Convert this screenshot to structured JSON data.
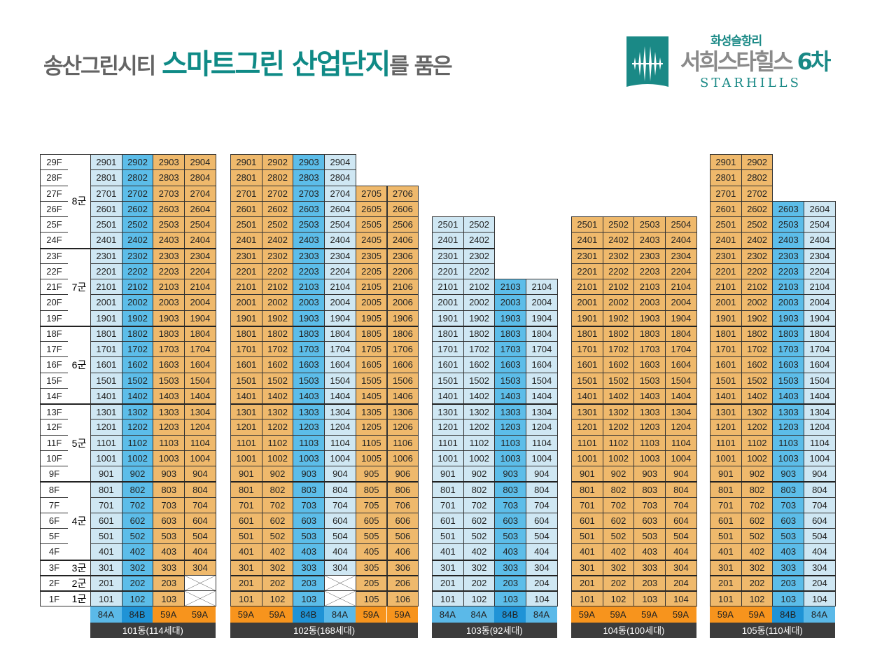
{
  "headline": {
    "prefix": "송산그린시티",
    "highlight": "스마트그린 산업단지",
    "suffix": "를 품은"
  },
  "logo": {
    "sub": "화성슬항리",
    "main": "서희스타힐스",
    "main_num": "6차",
    "english": "STARHILLS"
  },
  "colors": {
    "light_blue": "#cfe7f3",
    "mid_blue": "#5cbde9",
    "orange": "#efb96c",
    "84A": "#5bb9e8",
    "84B": "#1f93d6",
    "59A": "#f7941d",
    "label_bar": "#3c3c3c",
    "teal": "#0f8a86"
  },
  "floors": [
    "29F",
    "28F",
    "27F",
    "26F",
    "25F",
    "24F",
    "23F",
    "22F",
    "21F",
    "20F",
    "19F",
    "18F",
    "17F",
    "16F",
    "15F",
    "14F",
    "13F",
    "12F",
    "11F",
    "10F",
    "9F",
    "8F",
    "7F",
    "6F",
    "5F",
    "4F",
    "3F",
    "2F",
    "1F"
  ],
  "groups": [
    {
      "label": "8군",
      "top": "29F",
      "bottom": "24F"
    },
    {
      "label": "7군",
      "top": "23F",
      "bottom": "19F"
    },
    {
      "label": "6군",
      "top": "18F",
      "bottom": "14F"
    },
    {
      "label": "5군",
      "top": "13F",
      "bottom": "9F"
    },
    {
      "label": "4군",
      "top": "8F",
      "bottom": "4F"
    },
    {
      "label": "3군",
      "top": "3F",
      "bottom": "3F"
    },
    {
      "label": "2군",
      "top": "2F",
      "bottom": "2F"
    },
    {
      "label": "1군",
      "top": "1F",
      "bottom": "1F"
    }
  ],
  "buildings": [
    {
      "label": "101동(114세대)",
      "column_colors": [
        "lb",
        "mb",
        "or",
        "or"
      ],
      "types": [
        "84A",
        "84B",
        "59A",
        "59A"
      ],
      "rows": [
        "2901 2902 2903 2904",
        "2801 2802 2803 2804",
        "2701 2702 2703 2704",
        "2601 2602 2603 2604",
        "2501 2502 2503 2504",
        "2401 2402 2403 2404",
        "2301 2302 2303 2304",
        "2201 2202 2203 2204",
        "2101 2102 2103 2104",
        "2001 2002 2003 2004",
        "1901 1902 1903 1904",
        "1801 1802 1803 1804",
        "1701 1702 1703 1704",
        "1601 1602 1603 1604",
        "1501 1502 1503 1504",
        "1401 1402 1403 1404",
        "1301 1302 1303 1304",
        "1201 1202 1203 1204",
        "1101 1102 1103 1104",
        "1001 1002 1003 1004",
        "901 902 903 904",
        "801 802 803 804",
        "701 702 703 704",
        "601 602 603 604",
        "501 502 503 504",
        "401 402 403 404",
        "301 302 303 304",
        "201 202 203 x",
        "101 102 103 x"
      ]
    },
    {
      "label": "102동(168세대)",
      "column_colors": [
        "or",
        "or",
        "mb",
        "lb",
        "or",
        "or"
      ],
      "types": [
        "59A",
        "59A",
        "84B",
        "84A",
        "59A",
        "59A"
      ],
      "rows": [
        "2901 2902 2903 2904 - -",
        "2801 2802 2803 2804 - -",
        "2701 2702 2703 2704 2705 2706",
        "2601 2602 2603 2604 2605 2606",
        "2501 2502 2503 2504 2505 2506",
        "2401 2402 2403 2404 2405 2406",
        "2301 2302 2303 2304 2305 2306",
        "2201 2202 2203 2204 2205 2206",
        "2101 2102 2103 2104 2105 2106",
        "2001 2002 2003 2004 2005 2006",
        "1901 1902 1903 1904 1905 1906",
        "1801 1802 1803 1804 1805 1806",
        "1701 1702 1703 1704 1705 1706",
        "1601 1602 1603 1604 1605 1606",
        "1501 1502 1503 1504 1505 1506",
        "1401 1402 1403 1404 1405 1406",
        "1301 1302 1303 1304 1305 1306",
        "1201 1202 1203 1204 1205 1206",
        "1101 1102 1103 1104 1105 1106",
        "1001 1002 1003 1004 1005 1006",
        "901 902 903 904 905 906",
        "801 802 803 804 805 806",
        "701 702 703 704 705 706",
        "601 602 603 604 605 606",
        "501 502 503 504 505 506",
        "401 402 403 404 405 406",
        "301 302 303 304 305 306",
        "201 202 203 x 205 206",
        "101 102 103 x 105 106"
      ]
    },
    {
      "label": "103동(92세대)",
      "column_colors": [
        "lb",
        "lb",
        "mb",
        "lb"
      ],
      "types": [
        "84A",
        "84A",
        "84B",
        "84A"
      ],
      "rows": [
        "- - - -",
        "- - - -",
        "- - - -",
        "- - - -",
        "2501 2502 - -",
        "2401 2402 - -",
        "2301 2302 - -",
        "2201 2202 - -",
        "2101 2102 2103 2104",
        "2001 2002 2003 2004",
        "1901 1902 1903 1904",
        "1801 1802 1803 1804",
        "1701 1702 1703 1704",
        "1601 1602 1603 1604",
        "1501 1502 1503 1504",
        "1401 1402 1403 1404",
        "1301 1302 1303 1304",
        "1201 1202 1203 1204",
        "1101 1102 1103 1104",
        "1001 1002 1003 1004",
        "901 902 903 904",
        "801 802 803 804",
        "701 702 703 704",
        "601 602 603 604",
        "501 502 503 504",
        "401 402 403 404",
        "301 302 303 304",
        "201 202 203 204",
        "101 102 103 104"
      ]
    },
    {
      "label": "104동(100세대)",
      "column_colors": [
        "or",
        "or",
        "or",
        "or"
      ],
      "types": [
        "59A",
        "59A",
        "59A",
        "59A"
      ],
      "rows": [
        "- - - -",
        "- - - -",
        "- - - -",
        "- - - -",
        "2501 2502 2503 2504",
        "2401 2402 2403 2404",
        "2301 2302 2303 2304",
        "2201 2202 2203 2204",
        "2101 2102 2103 2104",
        "2001 2002 2003 2004",
        "1901 1902 1903 1904",
        "1801 1802 1803 1804",
        "1701 1702 1703 1704",
        "1601 1602 1603 1604",
        "1501 1502 1503 1504",
        "1401 1402 1403 1404",
        "1301 1302 1303 1304",
        "1201 1202 1203 1204",
        "1101 1102 1103 1104",
        "1001 1002 1003 1004",
        "901 902 903 904",
        "801 802 803 804",
        "701 702 703 704",
        "601 602 603 604",
        "501 502 503 504",
        "401 402 403 404",
        "301 302 303 304",
        "201 202 203 204",
        "101 102 103 104"
      ]
    },
    {
      "label": "105동(110세대)",
      "column_colors": [
        "or",
        "or",
        "mb",
        "lb"
      ],
      "types": [
        "59A",
        "59A",
        "84B",
        "84A"
      ],
      "rows": [
        "2901 2902 - -",
        "2801 2802 - -",
        "2701 2702 - -",
        "2601 2602 2603 2604",
        "2501 2502 2503 2504",
        "2401 2402 2403 2404",
        "2301 2302 2303 2304",
        "2201 2202 2203 2204",
        "2101 2102 2103 2104",
        "2001 2002 2003 2004",
        "1901 1902 1903 1904",
        "1801 1802 1803 1804",
        "1701 1702 1703 1704",
        "1601 1602 1603 1604",
        "1501 1502 1503 1504",
        "1401 1402 1403 1404",
        "1301 1302 1303 1304",
        "1201 1202 1203 1204",
        "1101 1102 1103 1104",
        "1001 1002 1003 1004",
        "901 902 903 904",
        "801 802 803 804",
        "701 702 703 704",
        "601 602 603 604",
        "501 502 503 504",
        "401 402 403 404",
        "301 302 303 304",
        "201 202 203 204",
        "101 102 103 104"
      ]
    }
  ]
}
